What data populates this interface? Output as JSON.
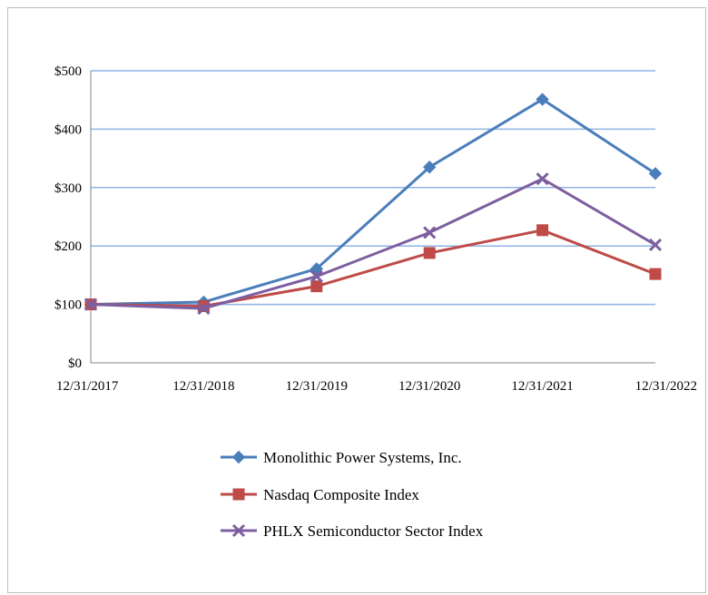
{
  "chart_data": {
    "type": "line",
    "categories": [
      "12/31/2017",
      "12/31/2018",
      "12/31/2019",
      "12/31/2020",
      "12/31/2021",
      "12/31/2022"
    ],
    "series": [
      {
        "name": "Monolithic Power Systems, Inc.",
        "values": [
          100,
          104,
          161,
          335,
          451,
          324
        ],
        "color": "#4a7ebb",
        "marker": "diamond"
      },
      {
        "name": "Nasdaq Composite Index",
        "values": [
          100,
          97,
          131,
          188,
          227,
          152
        ],
        "color": "#be4b48",
        "marker": "square"
      },
      {
        "name": "PHLX Semiconductor Sector Index",
        "values": [
          100,
          93,
          148,
          223,
          315,
          202
        ],
        "color": "#7d5fa0",
        "marker": "x"
      }
    ],
    "y_ticks": [
      "$0",
      "$100",
      "$200",
      "$300",
      "$400",
      "$500"
    ],
    "ylim": [
      0,
      500
    ],
    "grid": true,
    "grid_color": "#8eb4e3",
    "legend_position": "bottom"
  }
}
